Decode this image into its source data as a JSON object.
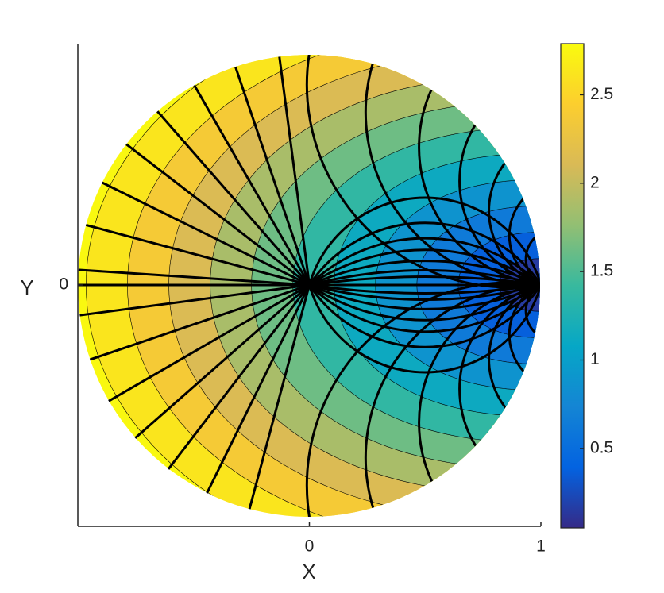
{
  "chart_data": {
    "type": "contour",
    "xlabel": "X",
    "ylabel": "Y",
    "xlim": [
      -1,
      1
    ],
    "ylim": [
      -1.04,
      1.04
    ],
    "xticks": [
      0,
      1
    ],
    "yticks": [
      0
    ],
    "clim": [
      0.05,
      2.79
    ],
    "cticks": [
      0.5,
      1,
      1.5,
      2,
      2.5
    ],
    "levels": [
      0.25,
      0.5,
      0.75,
      1,
      1.25,
      1.5,
      1.75,
      2,
      2.25,
      2.5,
      2.75
    ]
  }
}
